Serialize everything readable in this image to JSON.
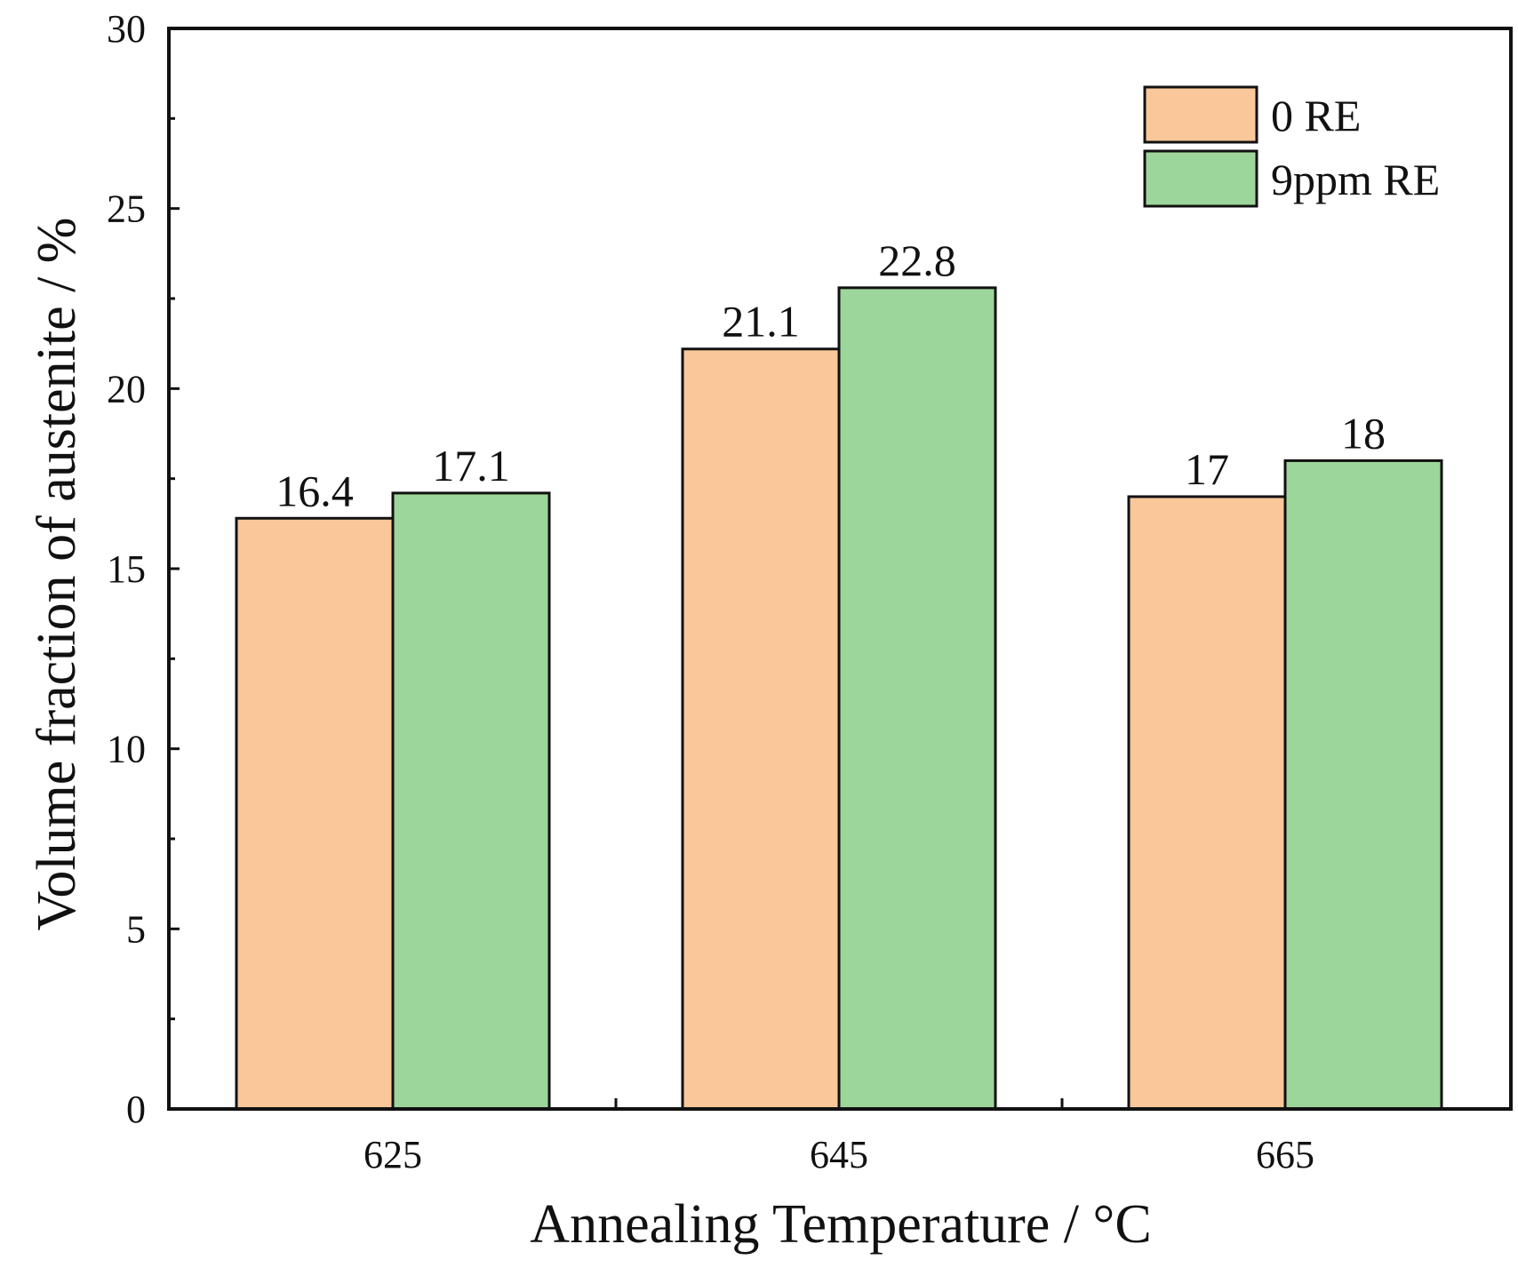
{
  "chart_data": {
    "type": "bar",
    "title": "",
    "xlabel": "Annealing Temperature / °C",
    "ylabel": "Volume fraction of austenite / %",
    "categories": [
      "625",
      "645",
      "665"
    ],
    "series": [
      {
        "name": "0 RE",
        "color": "#F9C799",
        "values": [
          16.4,
          21.1,
          17
        ],
        "labels": [
          "16.4",
          "21.1",
          "17"
        ]
      },
      {
        "name": "9ppm RE",
        "color": "#9DD69B",
        "values": [
          17.1,
          22.8,
          18
        ],
        "labels": [
          "17.1",
          "22.8",
          "18"
        ]
      }
    ],
    "ylim": [
      0,
      30
    ],
    "yticks": [
      0,
      5,
      10,
      15,
      20,
      25,
      30
    ],
    "grid": false,
    "legend_position": "top-right"
  }
}
